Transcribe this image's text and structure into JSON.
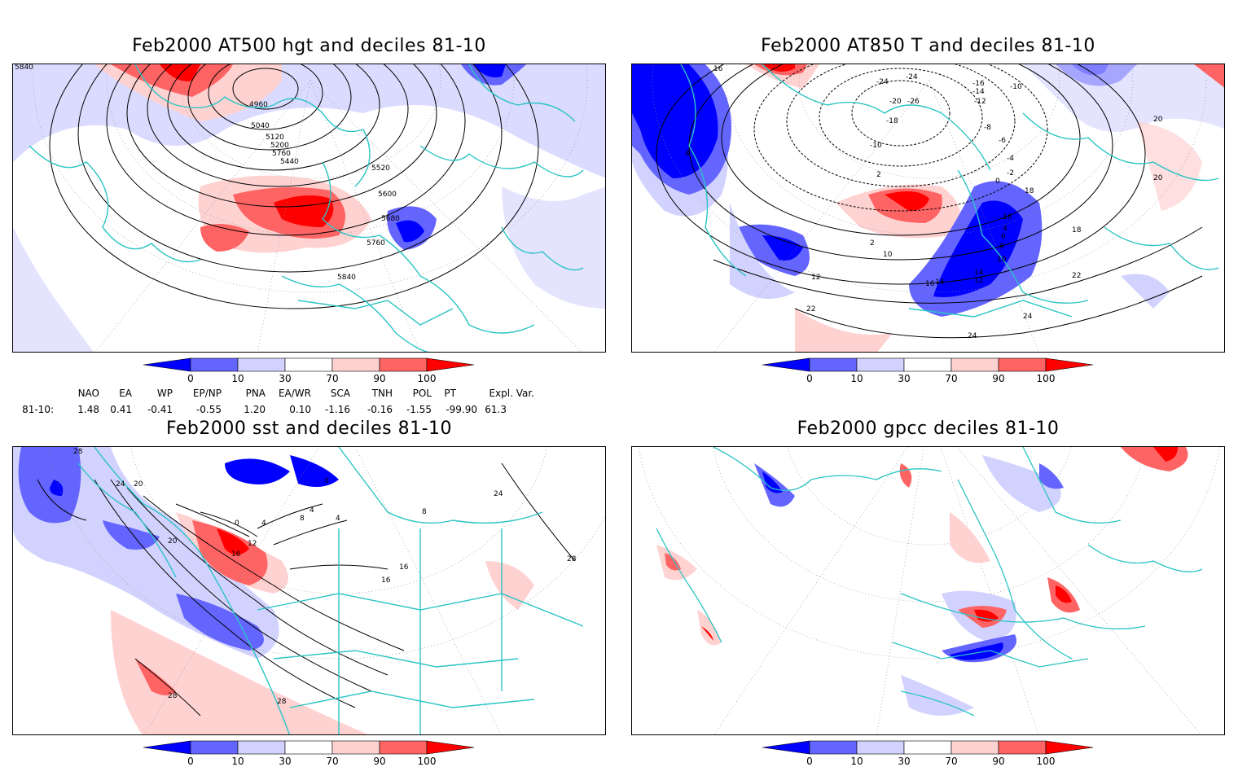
{
  "panels": [
    {
      "id": "p1",
      "title": "Feb2000 AT500 hgt and deciles 81-10",
      "contour_labels": [
        "5840",
        "4960",
        "5040",
        "5120",
        "5200",
        "5760",
        "5440",
        "5520",
        "5600",
        "5680",
        "5760",
        "5840"
      ]
    },
    {
      "id": "p2",
      "title": "Feb2000 AT850 T and deciles 81-10",
      "contour_labels": [
        "16",
        "-24",
        "-24",
        "-16",
        "-14",
        "-10",
        "-12",
        "-20",
        "-26",
        "-18",
        "-10",
        "-8",
        "-6",
        "-4",
        "-2",
        "0",
        "2",
        "4",
        "18",
        "2",
        "10",
        "12",
        "14",
        "16",
        "4",
        "6",
        "8",
        "10",
        "12",
        "14",
        "16",
        "18",
        "20",
        "22",
        "24",
        "24",
        "22",
        "20",
        "18",
        "16",
        "18",
        "16"
      ]
    },
    {
      "id": "p3",
      "title": "Feb2000 sst and deciles 81-10",
      "contour_labels": [
        "28",
        "20",
        "24",
        "20",
        "0",
        "4",
        "8",
        "4",
        "0",
        "12",
        "16",
        "16",
        "24",
        "16",
        "28",
        "28",
        "4",
        "8",
        "28"
      ]
    },
    {
      "id": "p4",
      "title": "Feb2000 gpcc deciles 81-10",
      "contour_labels": []
    }
  ],
  "colorbar": {
    "labels": [
      "0",
      "10",
      "30",
      "70",
      "90",
      "100"
    ],
    "colors": [
      "#0000ff",
      "#6464ff",
      "#d2d2ff",
      "#ffffff",
      "#ffd2d2",
      "#ff6464",
      "#ff0000"
    ]
  },
  "indices": {
    "row_label": "81-10:",
    "headers": [
      "NAO",
      "EA",
      "WP",
      "EP/NP",
      "PNA",
      "EA/WR",
      "SCA",
      "TNH",
      "POL",
      "PT",
      "Expl. Var."
    ],
    "values": [
      "1.48",
      "0.41",
      "-0.41",
      "-0.55",
      "1.20",
      "0.10",
      "-1.16",
      "-0.16",
      "-1.55",
      "-99.90",
      "61.3"
    ]
  },
  "colors": {
    "coast": "#2bc4c4",
    "strong_blue": "#0000ff",
    "mid_blue": "#6464ff",
    "light_blue": "#d2d2ff",
    "light_red": "#ffd2d2",
    "mid_red": "#ff6464",
    "strong_red": "#ff0000"
  }
}
